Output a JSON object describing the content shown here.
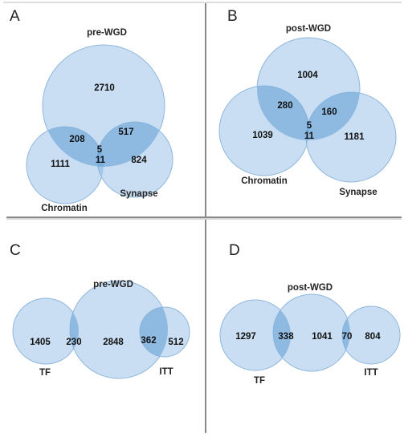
{
  "colors": {
    "circle_fill": "#c9def3",
    "circle_stroke": "#8fb7dc",
    "overlap_fill": "#7aaedc",
    "divider": "#8a8a8a"
  },
  "panels": {
    "A": {
      "letter": "A",
      "sets": {
        "pre_wgd": "pre-WGD",
        "chromatin": "Chromatin",
        "synapse": "Synapse"
      },
      "counts": {
        "pre_only": "2710",
        "pre_chromatin": "208",
        "pre_synapse": "517",
        "all_three": "5",
        "chromatin_synapse": "11",
        "chromatin_only": "1111",
        "synapse_only": "824"
      }
    },
    "B": {
      "letter": "B",
      "sets": {
        "post_wgd": "post-WGD",
        "chromatin": "Chromatin",
        "synapse": "Synapse"
      },
      "counts": {
        "post_only": "1004",
        "post_chromatin": "280",
        "post_synapse": "160",
        "all_three": "5",
        "chromatin_synapse": "11",
        "chromatin_only": "1039",
        "synapse_only": "1181"
      }
    },
    "C": {
      "letter": "C",
      "sets": {
        "pre_wgd": "pre-WGD",
        "tf": "TF",
        "itt": "ITT"
      },
      "counts": {
        "tf_only": "1405",
        "tf_pre": "230",
        "pre_only": "2848",
        "pre_itt": "362",
        "itt_only": "512"
      }
    },
    "D": {
      "letter": "D",
      "sets": {
        "post_wgd": "post-WGD",
        "tf": "TF",
        "itt": "ITT"
      },
      "counts": {
        "tf_only": "1297",
        "tf_post": "338",
        "post_only": "1041",
        "post_itt": "70",
        "itt_only": "804"
      }
    }
  }
}
